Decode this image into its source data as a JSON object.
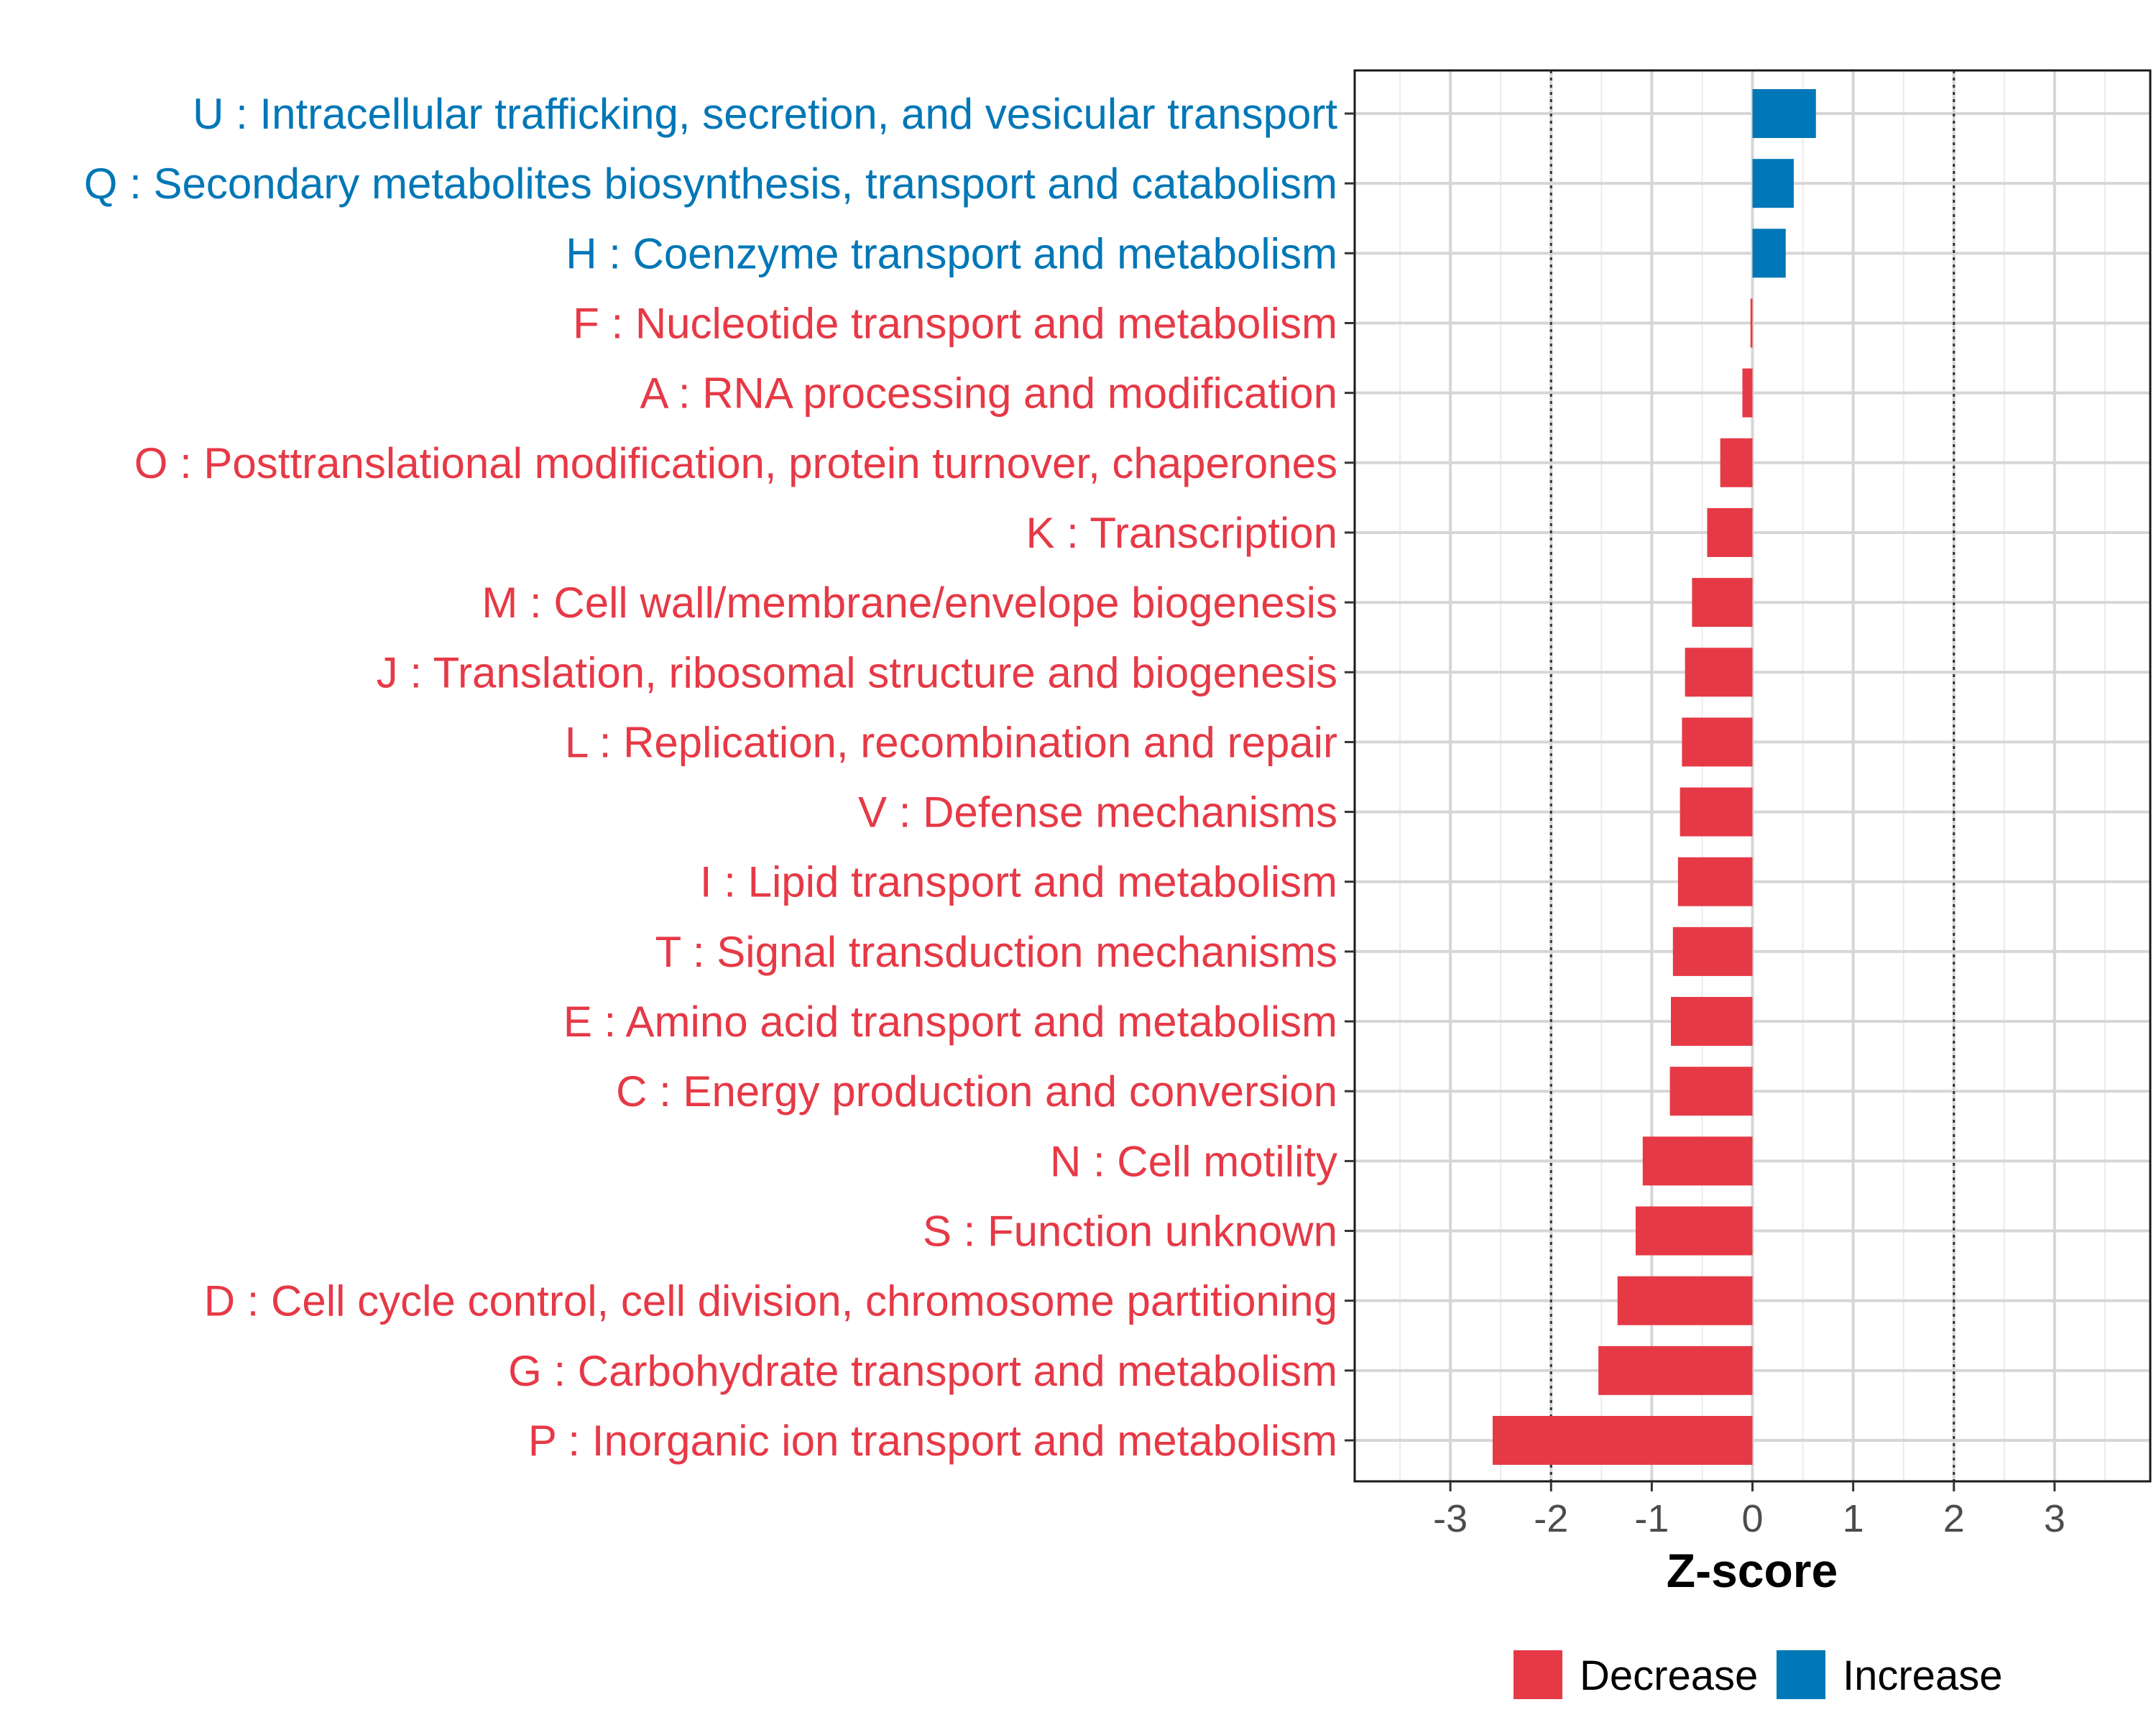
{
  "chart_data": {
    "type": "bar",
    "orientation": "horizontal",
    "xlabel": "Z-score",
    "xlim": [
      -3.95,
      3.95
    ],
    "xticks": [
      -3,
      -2,
      -1,
      0,
      1,
      2,
      3
    ],
    "reference_lines": [
      -2,
      2
    ],
    "grid": true,
    "colors": {
      "Decrease": "#e63946",
      "Increase": "#0077b6"
    },
    "categories": [
      {
        "label": "U : Intracellular trafficking, secretion, and vesicular transport",
        "value": 0.63,
        "group": "Increase"
      },
      {
        "label": "Q : Secondary metabolites biosynthesis, transport and catabolism",
        "value": 0.41,
        "group": "Increase"
      },
      {
        "label": "H : Coenzyme transport and metabolism",
        "value": 0.33,
        "group": "Increase"
      },
      {
        "label": "F : Nucleotide transport and metabolism",
        "value": -0.02,
        "group": "Decrease"
      },
      {
        "label": "A : RNA processing and modification",
        "value": -0.1,
        "group": "Decrease"
      },
      {
        "label": "O : Posttranslational modification, protein turnover, chaperones",
        "value": -0.32,
        "group": "Decrease"
      },
      {
        "label": "K : Transcription",
        "value": -0.45,
        "group": "Decrease"
      },
      {
        "label": "M : Cell wall/membrane/envelope biogenesis",
        "value": -0.6,
        "group": "Decrease"
      },
      {
        "label": "J : Translation, ribosomal structure and biogenesis",
        "value": -0.67,
        "group": "Decrease"
      },
      {
        "label": "L : Replication, recombination and repair",
        "value": -0.7,
        "group": "Decrease"
      },
      {
        "label": "V : Defense mechanisms",
        "value": -0.72,
        "group": "Decrease"
      },
      {
        "label": "I : Lipid transport and metabolism",
        "value": -0.74,
        "group": "Decrease"
      },
      {
        "label": "T : Signal transduction mechanisms",
        "value": -0.79,
        "group": "Decrease"
      },
      {
        "label": "E : Amino acid transport and metabolism",
        "value": -0.81,
        "group": "Decrease"
      },
      {
        "label": "C : Energy production and conversion",
        "value": -0.82,
        "group": "Decrease"
      },
      {
        "label": "N : Cell motility",
        "value": -1.09,
        "group": "Decrease"
      },
      {
        "label": "S : Function unknown",
        "value": -1.16,
        "group": "Decrease"
      },
      {
        "label": "D : Cell cycle control, cell division, chromosome partitioning",
        "value": -1.34,
        "group": "Decrease"
      },
      {
        "label": "G : Carbohydrate transport and metabolism",
        "value": -1.53,
        "group": "Decrease"
      },
      {
        "label": "P : Inorganic ion transport and metabolism",
        "value": -2.58,
        "group": "Decrease"
      }
    ],
    "legend": {
      "position": "bottom",
      "entries": [
        {
          "label": "Decrease",
          "color": "#e63946"
        },
        {
          "label": "Increase",
          "color": "#0077b6"
        }
      ]
    }
  }
}
